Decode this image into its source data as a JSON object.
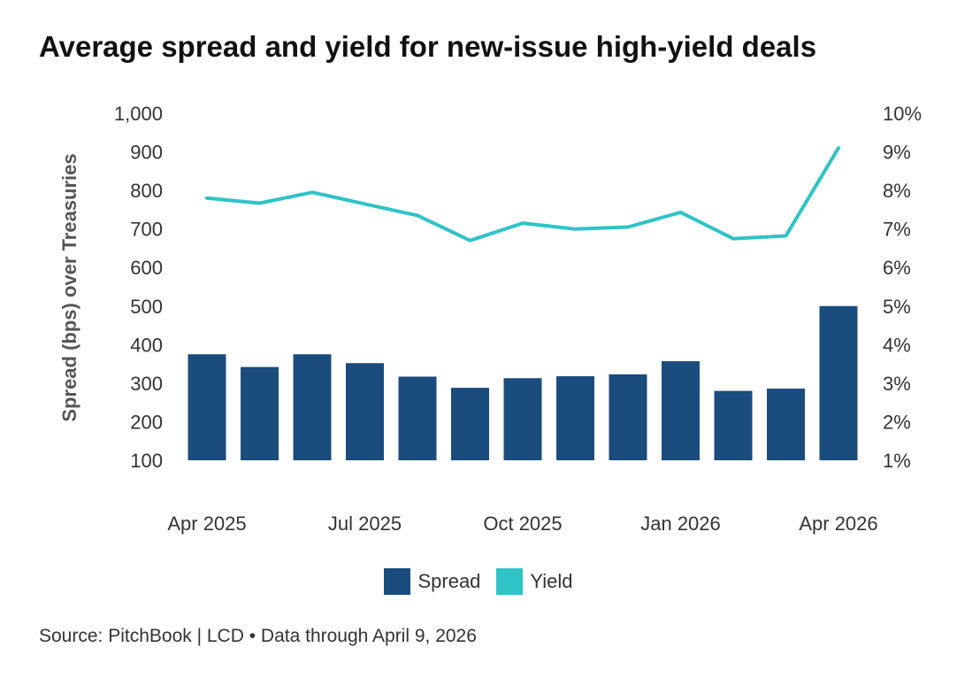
{
  "chart_data": {
    "type": "bar+line",
    "title": "Average spread and yield for new-issue high-yield deals",
    "source": "Source: PitchBook | LCD • Data through April 9, 2026",
    "ylabel_left": "Spread (bps) over Treasuries",
    "ylabel_right": "",
    "ylim_left": [
      100,
      1000
    ],
    "ylim_right": [
      1,
      10
    ],
    "yticks_left": [
      "100",
      "200",
      "300",
      "400",
      "500",
      "600",
      "700",
      "800",
      "900",
      "1,000"
    ],
    "yticks_right": [
      "1%",
      "2%",
      "3%",
      "4%",
      "5%",
      "6%",
      "7%",
      "8%",
      "9%",
      "10%"
    ],
    "x_labels": [
      "Apr 2025",
      "Jul 2025",
      "Oct 2025",
      "Jan 2026",
      "Apr 2026"
    ],
    "x_label_positions": [
      0,
      3,
      6,
      9,
      12
    ],
    "categories": [
      "Apr 2025",
      "May 2025",
      "Jun 2025",
      "Jul 2025",
      "Aug 2025",
      "Sep 2025",
      "Oct 2025",
      "Nov 2025",
      "Dec 2025",
      "Jan 2026",
      "Feb 2026",
      "Mar 2026",
      "Apr 2026"
    ],
    "grid": false,
    "legend_position": "bottom",
    "series": [
      {
        "name": "Spread",
        "type": "bar",
        "axis": "left",
        "color": "#1b4c7e",
        "values": [
          375,
          342,
          375,
          352,
          317,
          288,
          313,
          318,
          323,
          357,
          280,
          286,
          500
        ]
      },
      {
        "name": "Yield",
        "type": "line",
        "axis": "right",
        "color": "#2fc3c6",
        "values": [
          7.8,
          7.67,
          7.95,
          7.65,
          7.35,
          6.7,
          7.15,
          7.0,
          7.05,
          7.43,
          6.75,
          6.82,
          9.1
        ]
      }
    ]
  }
}
